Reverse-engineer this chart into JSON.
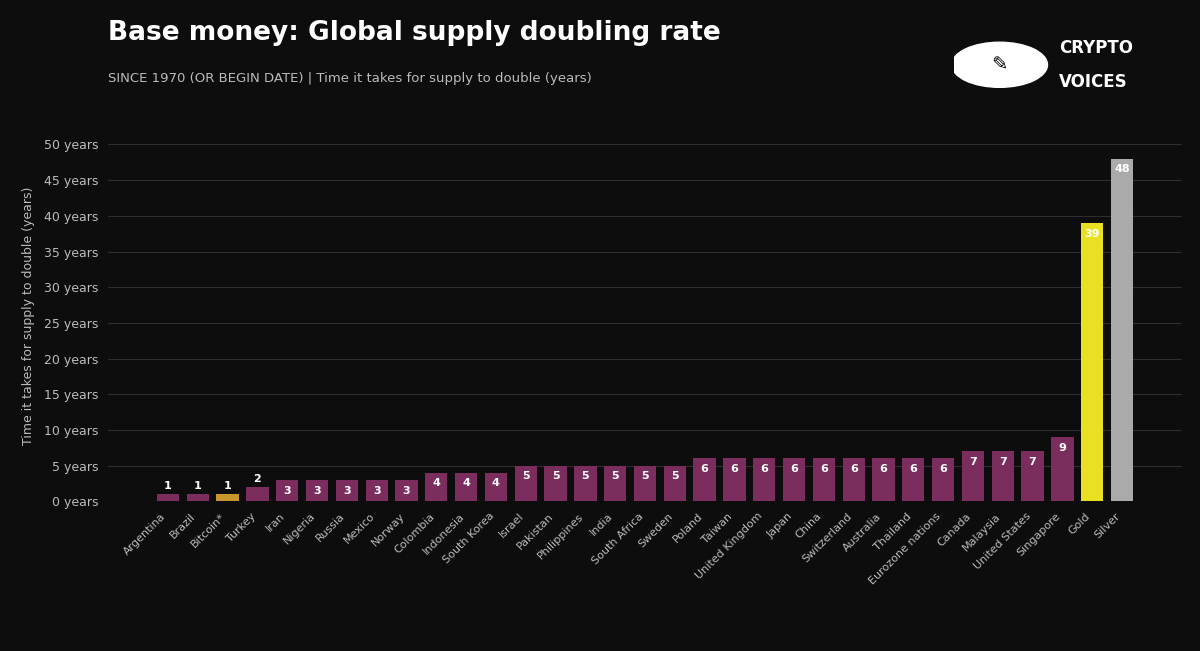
{
  "title": "Base money: Global supply doubling rate",
  "subtitle": "SINCE 1970 (OR BEGIN DATE) | Time it takes for supply to double (years)",
  "ylabel": "Time it takes for supply to double (years)",
  "background_color": "#0d0d0d",
  "text_color": "#bbbbbb",
  "grid_color": "#2e2e2e",
  "categories": [
    "Argentina",
    "Brazil",
    "Bitcoin*",
    "Turkey",
    "Iran",
    "Nigeria",
    "Russia",
    "Mexico",
    "Norway",
    "Colombia",
    "Indonesia",
    "South Korea",
    "Israel",
    "Pakistan",
    "Philippines",
    "India",
    "South Africa",
    "Sweden",
    "Poland",
    "Taiwan",
    "United Kingdom",
    "Japan",
    "China",
    "Switzerland",
    "Australia",
    "Thailand",
    "Eurozone nations",
    "Canada",
    "Malaysia",
    "United States",
    "Singapore",
    "Gold",
    "Silver"
  ],
  "values": [
    1,
    1,
    1,
    2,
    3,
    3,
    3,
    3,
    3,
    4,
    4,
    4,
    5,
    5,
    5,
    5,
    5,
    5,
    6,
    6,
    6,
    6,
    6,
    6,
    6,
    6,
    6,
    7,
    7,
    7,
    9,
    39,
    48
  ],
  "bar_colors": [
    "#7b2d5e",
    "#7b2d5e",
    "#c8962a",
    "#7b2d5e",
    "#7b2d5e",
    "#7b2d5e",
    "#7b2d5e",
    "#7b2d5e",
    "#7b2d5e",
    "#7b2d5e",
    "#7b2d5e",
    "#7b2d5e",
    "#7b2d5e",
    "#7b2d5e",
    "#7b2d5e",
    "#7b2d5e",
    "#7b2d5e",
    "#7b2d5e",
    "#7b2d5e",
    "#7b2d5e",
    "#7b2d5e",
    "#7b2d5e",
    "#7b2d5e",
    "#7b2d5e",
    "#7b2d5e",
    "#7b2d5e",
    "#7b2d5e",
    "#7b2d5e",
    "#7b2d5e",
    "#7b2d5e",
    "#7b2d5e",
    "#e8e020",
    "#aaaaaa"
  ],
  "label_values": [
    "1",
    "1",
    "1",
    "2",
    "3",
    "3",
    "3",
    "3",
    "3",
    "4",
    "4",
    "4",
    "5",
    "5",
    "5",
    "5",
    "5",
    "5",
    "6",
    "6",
    "6",
    "6",
    "6",
    "6",
    "6",
    "6",
    "6",
    "7",
    "7",
    "7",
    "9",
    "39",
    "48"
  ],
  "yticks": [
    0,
    5,
    10,
    15,
    20,
    25,
    30,
    35,
    40,
    45,
    50
  ],
  "ytick_labels": [
    "0 years",
    "5 years",
    "10 years",
    "15 years",
    "20 years",
    "25 years",
    "30 years",
    "35 years",
    "40 years",
    "45 years",
    "50 years"
  ],
  "ylim": [
    0,
    52
  ]
}
